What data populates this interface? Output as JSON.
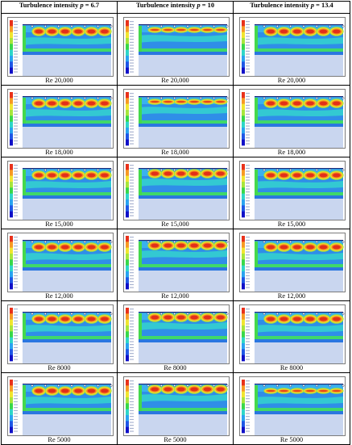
{
  "headers": [
    {
      "prefix": "Turbulence intensity ",
      "var": "p",
      "suffix": " = 6.7"
    },
    {
      "prefix": "Turbulence intensity ",
      "var": "p",
      "suffix": " = 10"
    },
    {
      "prefix": "Turbulence intensity ",
      "var": "p",
      "suffix": " = 13.4"
    }
  ],
  "rows": [
    {
      "labels": [
        "Re 20,000",
        "Re 20,000",
        "Re 20,000"
      ]
    },
    {
      "labels": [
        "Re 18,000",
        "Re 18,000",
        "Re 18,000"
      ]
    },
    {
      "labels": [
        "Re 15,000",
        "Re 15,000",
        "Re 15,000"
      ]
    },
    {
      "labels": [
        "Re 12,000",
        "Re 12,000",
        "Re 12,000"
      ]
    },
    {
      "labels": [
        "Re 8000",
        "Re 8000",
        "Re 8000"
      ]
    },
    {
      "labels": [
        "Re 5000",
        "Re 5000",
        "Re 5000"
      ]
    }
  ],
  "colormap": [
    "#1010c8",
    "#1f57e6",
    "#29a3f0",
    "#2fd6c8",
    "#39d84a",
    "#a7e53c",
    "#f0e531",
    "#f79a25",
    "#e8311b"
  ]
}
